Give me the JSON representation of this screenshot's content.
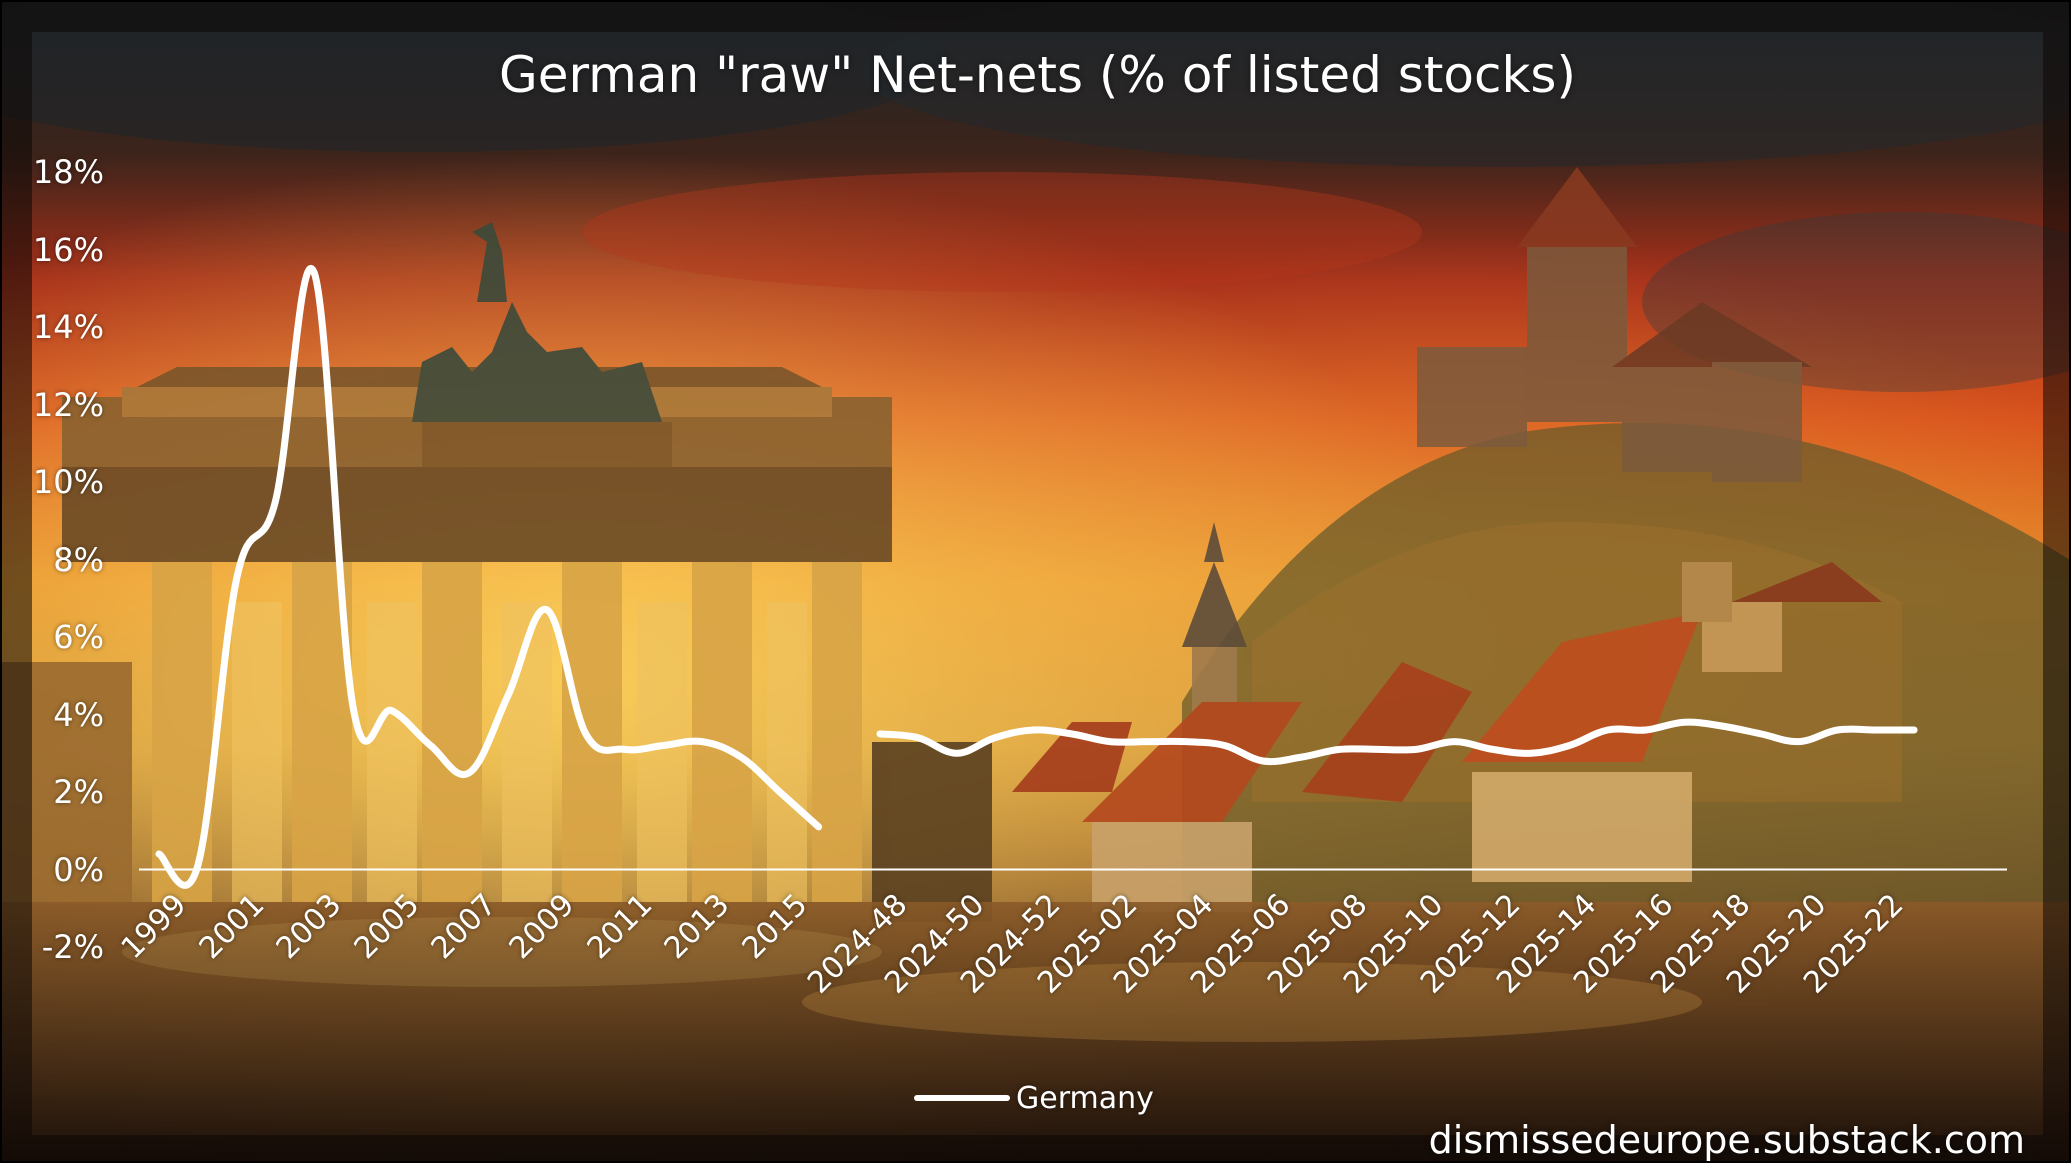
{
  "chart_data": {
    "type": "line",
    "title": "German \"raw\" Net-nets (% of listed stocks)",
    "xlabel": "",
    "ylabel": "",
    "ylim": [
      -2,
      18
    ],
    "y_ticks": [
      "18%",
      "16%",
      "14%",
      "12%",
      "10%",
      "8%",
      "6%",
      "4%",
      "2%",
      "0%",
      "-2%"
    ],
    "grid": false,
    "legend_position": "bottom",
    "series_name": "Germany",
    "series_color": "#ffffff",
    "panels": [
      {
        "x_tick_labels": [
          "1999",
          "2001",
          "2003",
          "2005",
          "2007",
          "2009",
          "2011",
          "2013",
          "2015"
        ],
        "x": [
          1999,
          2000,
          2001,
          2002,
          2003,
          2004,
          2005,
          2006,
          2007,
          2008,
          2009,
          2010,
          2011,
          2012,
          2013,
          2014,
          2015,
          2016
        ],
        "values": [
          0.4,
          0.1,
          7.5,
          9.5,
          15.4,
          4.2,
          4.1,
          3.2,
          2.5,
          4.5,
          6.7,
          3.5,
          3.1,
          3.2,
          3.3,
          2.9,
          2.0,
          1.1
        ]
      },
      {
        "x_tick_labels": [
          "2024-48",
          "2024-50",
          "2024-52",
          "2025-02",
          "2025-04",
          "2025-06",
          "2025-08",
          "2025-10",
          "2025-12",
          "2025-14",
          "2025-16",
          "2025-18",
          "2025-20",
          "2025-22"
        ],
        "x": [
          "2024-48",
          "2024-49",
          "2024-50",
          "2024-51",
          "2024-52",
          "2025-01",
          "2025-02",
          "2025-03",
          "2025-04",
          "2025-05",
          "2025-06",
          "2025-07",
          "2025-08",
          "2025-09",
          "2025-10",
          "2025-11",
          "2025-12",
          "2025-13",
          "2025-14",
          "2025-15",
          "2025-16",
          "2025-17",
          "2025-18",
          "2025-19",
          "2025-20",
          "2025-21",
          "2025-22",
          "2025-23"
        ],
        "values": [
          3.5,
          3.4,
          3.0,
          3.4,
          3.6,
          3.5,
          3.3,
          3.3,
          3.3,
          3.2,
          2.8,
          2.9,
          3.1,
          3.1,
          3.1,
          3.3,
          3.1,
          3.0,
          3.2,
          3.6,
          3.6,
          3.8,
          3.7,
          3.5,
          3.3,
          3.6,
          3.6,
          3.6
        ]
      }
    ]
  },
  "legend": {
    "label": "Germany"
  },
  "watermark": "dismissedeurope.substack.com"
}
